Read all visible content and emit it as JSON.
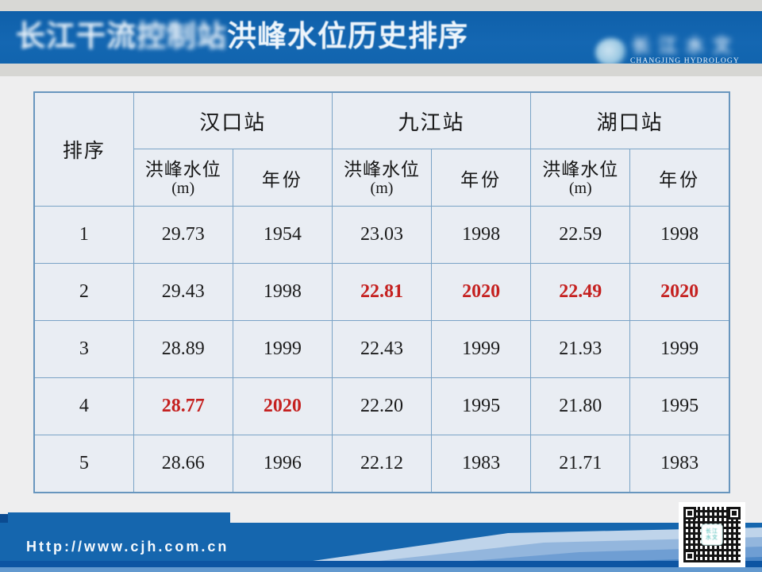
{
  "slide": {
    "title": {
      "full": "长江干流控制站洪峰水位历史排序",
      "part1": "长江干流",
      "part2": "控制站",
      "part3": "洪峰水位历史排序"
    },
    "logo": {
      "chinese": "长江水文",
      "english": "CHANGJING HYDROLOGY"
    },
    "table": {
      "rank_header": "排序",
      "stations": [
        {
          "name": "汉口站"
        },
        {
          "name": "九江站"
        },
        {
          "name": "湖口站"
        }
      ],
      "sub": {
        "level": "洪峰水位",
        "unit": "(m)",
        "year": "年份"
      },
      "rows": [
        {
          "rank": "1",
          "values": [
            "29.73",
            "1954",
            "23.03",
            "1998",
            "22.59",
            "1998"
          ],
          "highlight": [
            false,
            false,
            false,
            false,
            false,
            false
          ]
        },
        {
          "rank": "2",
          "values": [
            "29.43",
            "1998",
            "22.81",
            "2020",
            "22.49",
            "2020"
          ],
          "highlight": [
            false,
            false,
            true,
            true,
            true,
            true
          ]
        },
        {
          "rank": "3",
          "values": [
            "28.89",
            "1999",
            "22.43",
            "1999",
            "21.93",
            "1999"
          ],
          "highlight": [
            false,
            false,
            false,
            false,
            false,
            false
          ]
        },
        {
          "rank": "4",
          "values": [
            "28.77",
            "2020",
            "22.20",
            "1995",
            "21.80",
            "1995"
          ],
          "highlight": [
            true,
            true,
            false,
            false,
            false,
            false
          ]
        },
        {
          "rank": "5",
          "values": [
            "28.66",
            "1996",
            "22.12",
            "1983",
            "21.71",
            "1983"
          ],
          "highlight": [
            false,
            false,
            false,
            false,
            false,
            false
          ]
        }
      ]
    },
    "footer": {
      "url": "Http://www.cjh.com.cn"
    },
    "qr": {
      "logo_line1": "长江",
      "logo_line2": "水文"
    },
    "colors": {
      "title_bar_blue": "#1164ae",
      "footer_blue": "#1566ae",
      "highlight_red": "#c52120",
      "table_border": "#7aa3c6",
      "cell_background": "#e9edf3"
    }
  }
}
